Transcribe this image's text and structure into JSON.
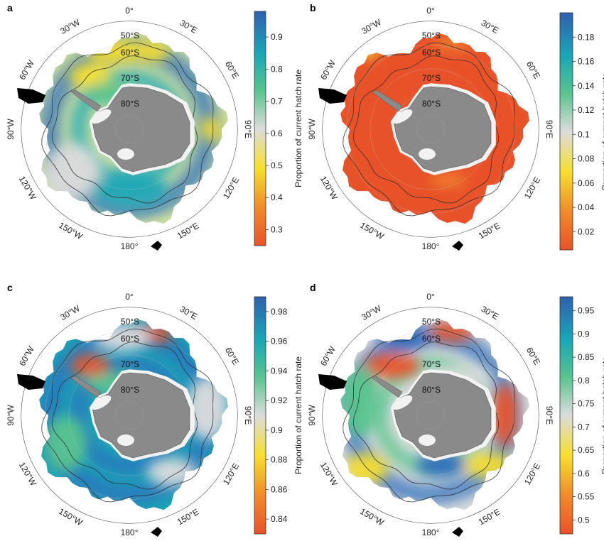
{
  "figure": {
    "colorbar_title": "Proportion of current hatch rate",
    "longitude_labels": [
      "0°",
      "30°E",
      "60°E",
      "90°E",
      "120°E",
      "150°E",
      "180°",
      "150°W",
      "120°W",
      "90°W",
      "60°W",
      "30°W"
    ],
    "latitude_labels": [
      "50°S",
      "60°S",
      "70°S",
      "80°S"
    ],
    "colors": {
      "land": "#8a8a8a",
      "ice_shelf": "#f2f2f2",
      "ocean_background": "#ffffff",
      "grid": "#c8c8c8",
      "front_lines": "#333333",
      "colormap": [
        "#e8532a",
        "#f08a2a",
        "#f7df2e",
        "#dcdcdc",
        "#59c48e",
        "#1aa6b7",
        "#3060b0"
      ]
    },
    "panels": [
      {
        "letter": "a",
        "colorbar_ticks": [
          "0.9",
          "0.8",
          "0.7",
          "0.6",
          "0.5",
          "0.4",
          "0.3"
        ],
        "colorbar_range": [
          0.25,
          0.98
        ]
      },
      {
        "letter": "b",
        "colorbar_ticks": [
          "0.18",
          "0.16",
          "0.14",
          "0.12",
          "0.1",
          "0.08",
          "0.06",
          "0.04",
          "0.02"
        ],
        "colorbar_range": [
          0.005,
          0.2
        ]
      },
      {
        "letter": "c",
        "colorbar_ticks": [
          "0.98",
          "0.96",
          "0.94",
          "0.92",
          "0.9",
          "0.88",
          "0.86",
          "0.84"
        ],
        "colorbar_range": [
          0.83,
          0.99
        ]
      },
      {
        "letter": "d",
        "colorbar_ticks": [
          "0.95",
          "0.9",
          "0.85",
          "0.8",
          "0.75",
          "0.7",
          "0.65",
          "0.6",
          "0.55",
          "0.5"
        ],
        "colorbar_range": [
          0.47,
          0.98
        ]
      }
    ]
  }
}
